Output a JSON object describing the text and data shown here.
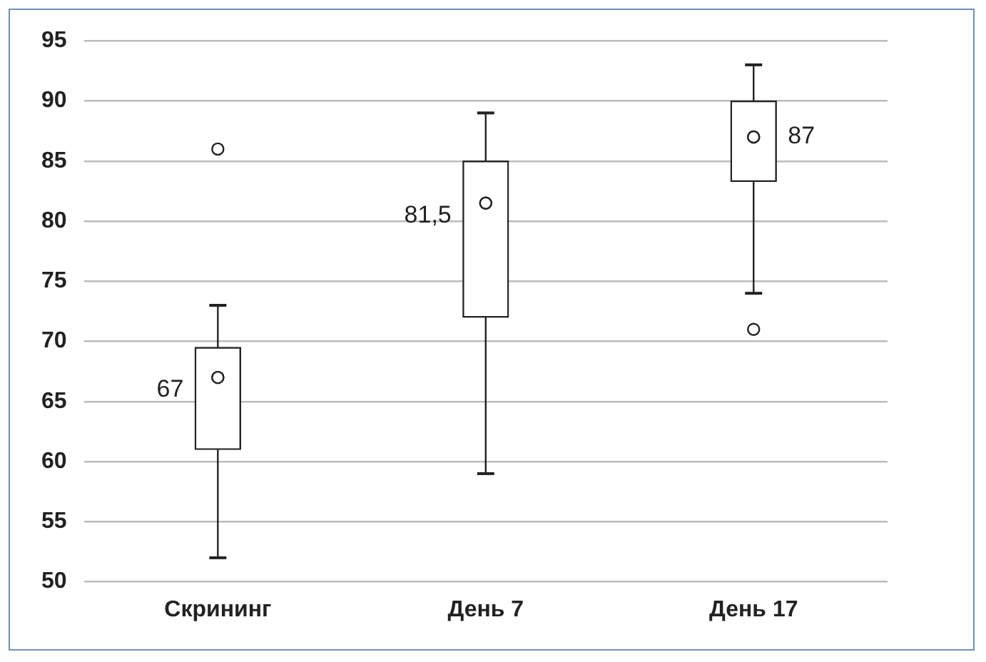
{
  "chart_data": {
    "type": "box",
    "categories": [
      "Скрининг",
      "День 7",
      "День 17"
    ],
    "boxes": [
      {
        "low": 52,
        "q1": 61,
        "median": 67,
        "q3": 69.5,
        "high": 73,
        "outliers": [
          86
        ]
      },
      {
        "low": 59,
        "q1": 72,
        "median": 81.5,
        "q3": 85,
        "high": 89
      },
      {
        "low": 74,
        "q1": 83.3,
        "median": 87,
        "q3": 90,
        "high": 93,
        "outliers": [
          71
        ]
      }
    ],
    "value_labels": [
      "67",
      "81,5",
      "87"
    ],
    "color": "#222222",
    "ylim": [
      50,
      95
    ],
    "yticks": [
      50,
      55,
      60,
      65,
      70,
      75,
      80,
      85,
      90,
      95
    ],
    "grid": "y",
    "marker": "circle"
  }
}
